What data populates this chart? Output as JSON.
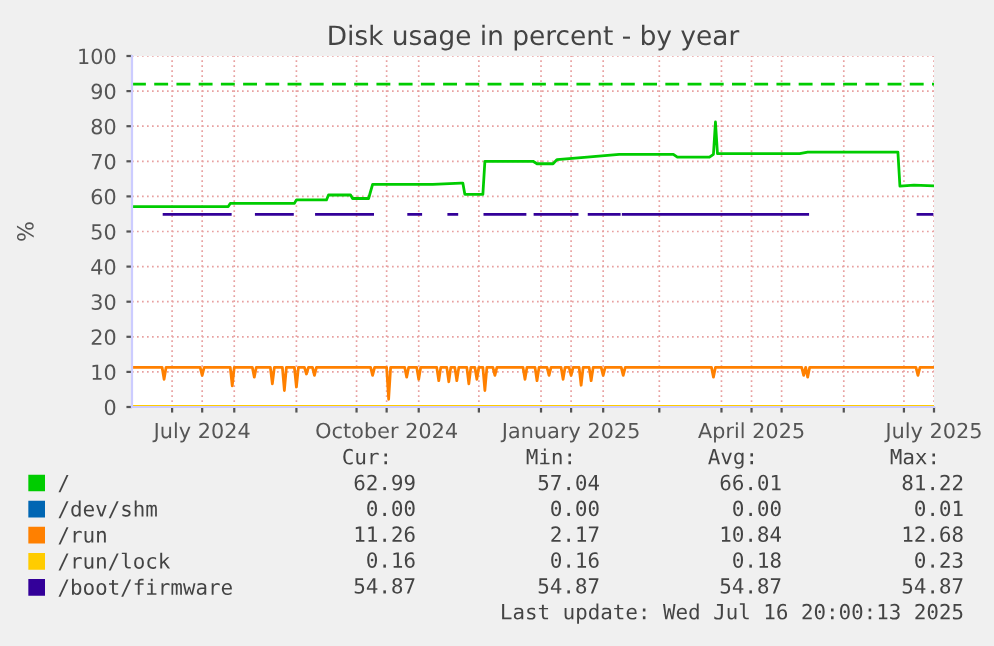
{
  "chart_data": {
    "type": "line",
    "title": "Disk usage in percent - by year",
    "ylabel": "%",
    "xlim": [
      "2024-06-11",
      "2025-07-16"
    ],
    "xticks": [
      {
        "value": "2024-07-01",
        "label": null
      },
      {
        "value": "2024-07-16",
        "label": "July 2024"
      },
      {
        "value": "2024-08-01",
        "label": null
      },
      {
        "value": "2024-09-01",
        "label": null
      },
      {
        "value": "2024-10-01",
        "label": null
      },
      {
        "value": "2024-10-16",
        "label": "October 2024"
      },
      {
        "value": "2024-11-01",
        "label": null
      },
      {
        "value": "2024-12-01",
        "label": null
      },
      {
        "value": "2025-01-01",
        "label": null
      },
      {
        "value": "2025-01-16",
        "label": "January 2025"
      },
      {
        "value": "2025-02-01",
        "label": null
      },
      {
        "value": "2025-03-01",
        "label": null
      },
      {
        "value": "2025-04-01",
        "label": null
      },
      {
        "value": "2025-04-16",
        "label": "April 2025"
      },
      {
        "value": "2025-05-01",
        "label": null
      },
      {
        "value": "2025-06-01",
        "label": null
      },
      {
        "value": "2025-07-01",
        "label": null
      },
      {
        "value": "2025-07-16",
        "label": "July 2025"
      }
    ],
    "ylim": [
      0,
      100
    ],
    "yticks": [
      0,
      10,
      20,
      30,
      40,
      50,
      60,
      70,
      80,
      90,
      100
    ],
    "grid": true,
    "legend": "bottom",
    "ref_lines": [
      {
        "axis": "y",
        "value": 92,
        "label": null,
        "color": "#00cc00",
        "line_style": "dashed"
      }
    ],
    "series": [
      {
        "name": "/",
        "color": "#00cc00",
        "x": [
          "2024-06-11",
          "2024-07-29",
          "2024-07-30",
          "2024-08-31",
          "2024-09-01",
          "2024-09-16",
          "2024-09-17",
          "2024-09-28",
          "2024-09-29",
          "2024-10-07",
          "2024-10-09",
          "2024-11-08",
          "2024-11-22",
          "2024-11-23",
          "2024-11-24",
          "2024-12-03",
          "2024-12-04",
          "2024-12-28",
          "2024-12-30",
          "2025-01-07",
          "2025-01-09",
          "2025-01-24",
          "2025-02-09",
          "2025-03-08",
          "2025-03-10",
          "2025-03-26",
          "2025-03-28",
          "2025-03-29",
          "2025-03-30",
          "2025-05-10",
          "2025-05-14",
          "2025-06-28",
          "2025-06-29",
          "2025-07-06",
          "2025-07-16"
        ],
        "values": [
          57.1,
          57.1,
          58,
          58,
          59,
          59,
          60.4,
          60.4,
          59.4,
          59.4,
          63.4,
          63.4,
          63.8,
          63.8,
          60.6,
          60.6,
          70,
          70,
          69.3,
          69.3,
          70.5,
          71.2,
          72,
          72,
          71.2,
          71.2,
          72,
          81.2,
          72.2,
          72.2,
          72.6,
          72.6,
          62.9,
          63.2,
          63
        ]
      },
      {
        "name": "/dev/shm",
        "color": "#0066b3"
      },
      {
        "name": "/run",
        "color": "#ff8000",
        "x": [
          "2024-06-11",
          "2024-06-26",
          "2024-06-27",
          "2024-06-28",
          "2024-07-15",
          "2024-07-16",
          "2024-07-17",
          "2024-07-30",
          "2024-07-31",
          "2024-08-01",
          "2024-08-10",
          "2024-08-11",
          "2024-08-12",
          "2024-08-19",
          "2024-08-20",
          "2024-08-21",
          "2024-08-25",
          "2024-08-26",
          "2024-08-27",
          "2024-08-31",
          "2024-09-01",
          "2024-09-02",
          "2024-09-05",
          "2024-09-06",
          "2024-09-07",
          "2024-09-09",
          "2024-09-10",
          "2024-09-11",
          "2024-10-08",
          "2024-10-09",
          "2024-10-10",
          "2024-10-16",
          "2024-10-17",
          "2024-10-18",
          "2024-10-25",
          "2024-10-26",
          "2024-10-27",
          "2024-10-31",
          "2024-11-01",
          "2024-11-02",
          "2024-11-10",
          "2024-11-11",
          "2024-11-12",
          "2024-11-15",
          "2024-11-16",
          "2024-11-17",
          "2024-11-19",
          "2024-11-20",
          "2024-11-21",
          "2024-11-25",
          "2024-11-26",
          "2024-11-27",
          "2024-11-29",
          "2024-11-30",
          "2024-12-01",
          "2024-12-03",
          "2024-12-04",
          "2024-12-05",
          "2024-12-08",
          "2024-12-09",
          "2024-12-10",
          "2024-12-23",
          "2024-12-24",
          "2024-12-25",
          "2024-12-29",
          "2024-12-30",
          "2024-12-31",
          "2025-01-04",
          "2025-01-05",
          "2025-01-06",
          "2025-01-11",
          "2025-01-12",
          "2025-01-13",
          "2025-01-15",
          "2025-01-16",
          "2025-01-17",
          "2025-01-20",
          "2025-01-21",
          "2025-01-22",
          "2025-01-25",
          "2025-01-26",
          "2025-01-27",
          "2025-01-31",
          "2025-02-01",
          "2025-02-02",
          "2025-02-10",
          "2025-02-11",
          "2025-02-12",
          "2025-03-27",
          "2025-03-28",
          "2025-03-29",
          "2025-05-11",
          "2025-05-12",
          "2025-05-13",
          "2025-05-14",
          "2025-05-15",
          "2025-07-07",
          "2025-07-08",
          "2025-07-09",
          "2025-07-16"
        ],
        "values": [
          11.3,
          11.3,
          7.9,
          11.3,
          11.3,
          9,
          11.3,
          11.3,
          6,
          11.3,
          11.3,
          8.5,
          11.3,
          11.3,
          6.6,
          11.3,
          11.3,
          4.7,
          11.3,
          11.3,
          5.7,
          11.3,
          11.3,
          9.4,
          11.3,
          11.3,
          9,
          11.3,
          11.3,
          9,
          11.3,
          11.3,
          2.2,
          11.3,
          11.3,
          8.5,
          11.3,
          11.3,
          7.9,
          11.3,
          11.3,
          7.5,
          11.3,
          11.3,
          7.2,
          11.3,
          11.3,
          7.5,
          11.3,
          11.3,
          6.6,
          11.3,
          11.3,
          7.9,
          11.3,
          11.3,
          4.7,
          11.3,
          11.3,
          9,
          11.3,
          11.3,
          7.9,
          11.3,
          11.3,
          7.5,
          11.3,
          11.3,
          9,
          11.3,
          11.3,
          7.9,
          11.3,
          11.3,
          9,
          11.3,
          11.3,
          6.2,
          11.3,
          11.3,
          7.5,
          11.3,
          11.3,
          9,
          11.3,
          11.3,
          9,
          11.3,
          11.3,
          8.5,
          11.3,
          11.3,
          9,
          11.3,
          8.5,
          11.3,
          11.3,
          9,
          11.3,
          11.3
        ]
      },
      {
        "name": "/run/lock",
        "color": "#ffcc00",
        "x": [
          "2024-06-11",
          "2025-07-16"
        ],
        "values": [
          0.2,
          0.2
        ]
      },
      {
        "name": "/boot/firmware",
        "color": "#330099",
        "x": [
          "2024-06-27",
          "2024-07-30",
          "2024-08-05",
          "2024-08-12",
          "2024-08-30",
          "2024-09-05",
          "2024-09-11",
          "2024-10-09",
          "2024-10-18",
          "2024-10-27",
          "2024-11-02",
          "2024-11-10",
          "2024-11-16",
          "2024-11-20",
          "2024-11-27",
          "2024-12-04",
          "2024-12-24",
          "2024-12-27",
          "2024-12-29",
          "2025-01-19",
          "2025-01-22",
          "2025-01-25",
          "2025-02-09",
          "2025-02-10",
          "2025-02-11",
          "2025-05-14",
          "2025-06-10",
          "2025-07-08",
          "2025-07-15"
        ],
        "values": [
          54.9,
          54.9,
          null,
          54.9,
          54.9,
          null,
          54.9,
          54.9,
          null,
          54.9,
          54.9,
          null,
          54.9,
          54.9,
          null,
          54.9,
          54.9,
          null,
          54.9,
          54.9,
          null,
          54.9,
          54.9,
          null,
          54.9,
          54.9,
          null,
          54.9,
          54.9
        ]
      }
    ],
    "annotations": [
      "Cur:",
      "Min:",
      "Avg:",
      "Max:",
      "62.99",
      "57.04",
      "66.01",
      "81.22",
      "0.00",
      "0.00",
      "0.00",
      "0.01",
      "11.26",
      "2.17",
      "10.84",
      "12.68",
      "0.16",
      "0.16",
      "0.18",
      "0.23",
      "54.87",
      "54.87",
      "54.87",
      "54.87",
      "Last update: Wed Jul 16 20:00:13 2025"
    ]
  }
}
